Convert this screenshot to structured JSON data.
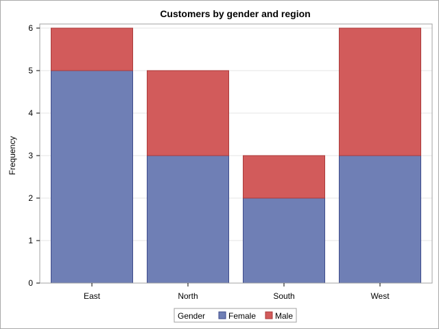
{
  "chart_data": {
    "type": "bar",
    "stacked": true,
    "title": "Customers by gender and region",
    "xlabel": "",
    "ylabel": "Frequency",
    "categories": [
      "East",
      "North",
      "South",
      "West"
    ],
    "series": [
      {
        "name": "Female",
        "values": [
          5,
          3,
          2,
          3
        ],
        "color": "#6f7fb5",
        "stroke": "#3d4a8a"
      },
      {
        "name": "Male",
        "values": [
          1,
          2,
          1,
          3
        ],
        "color": "#d25b5b",
        "stroke": "#a93a3a"
      }
    ],
    "ylim": [
      0,
      6
    ],
    "yticks": [
      "0",
      "1",
      "2",
      "3",
      "4",
      "5",
      "6"
    ],
    "grid": true,
    "gridColor": "#e6e6e6",
    "legend": {
      "title": "Gender",
      "placement": "bottom-center"
    }
  }
}
